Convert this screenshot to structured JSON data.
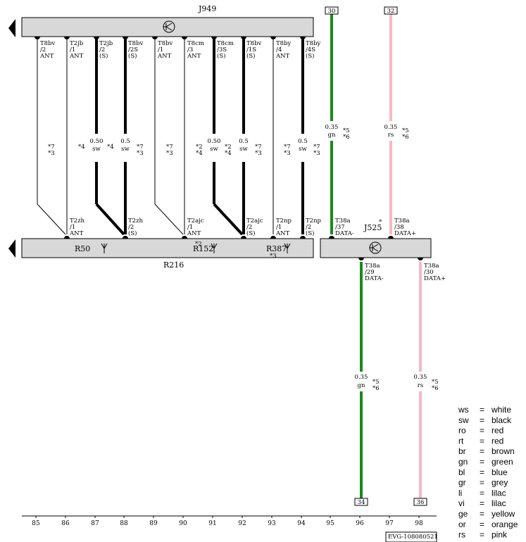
{
  "components": {
    "j949": "J949",
    "r216": "R216",
    "r50": "R50",
    "r152": "R152",
    "r387": "R387",
    "j525": "J525"
  },
  "top_wires": [
    {
      "conn": "T8bv",
      "pin": "/2",
      "sig": "ANT"
    },
    {
      "conn": "T2jb",
      "pin": "/1",
      "sig": "ANT"
    },
    {
      "conn": "T2jb",
      "pin": "/2",
      "sig": "(S)"
    },
    {
      "conn": "T8bv",
      "pin": "/2S",
      "sig": "(S)"
    },
    {
      "conn": "T8bv",
      "pin": "/1",
      "sig": "ANT"
    },
    {
      "conn": "T8cm",
      "pin": "/3",
      "sig": "ANT"
    },
    {
      "conn": "T8cm",
      "pin": "/3S",
      "sig": "(S)"
    },
    {
      "conn": "T8bv",
      "pin": "/1S",
      "sig": "(S)"
    },
    {
      "conn": "T8by",
      "pin": "/4",
      "sig": "ANT"
    },
    {
      "conn": "T8by",
      "pin": "/4S",
      "sig": "(S)"
    }
  ],
  "bottom_wires": [
    {
      "conn": "T2zh",
      "pin": "/1",
      "sig": "ANT"
    },
    {
      "conn": "T2zh",
      "pin": "/2",
      "sig": "(S)"
    },
    {
      "conn": "T2ajc",
      "pin": "/1",
      "sig": "ANT"
    },
    {
      "conn": "T2ajc",
      "pin": "/2",
      "sig": "(S)"
    },
    {
      "conn": "T2np",
      "pin": "/1",
      "sig": "ANT"
    },
    {
      "conn": "T2np",
      "pin": "/2",
      "sig": "(S)"
    },
    {
      "conn": "T38a",
      "pin": "/37",
      "sig": "DATA-"
    },
    {
      "conn": "T38a",
      "pin": "/38",
      "sig": "DATA+"
    }
  ],
  "lower_wires": [
    {
      "conn": "T38a",
      "pin": "/29",
      "sig": "DATA-"
    },
    {
      "conn": "T38a",
      "pin": "/30",
      "sig": "DATA+"
    }
  ],
  "wire_specs": {
    "w87_size": "0.50",
    "w87_color": "sw",
    "w88_size": "0.5",
    "w88_color": "sw",
    "w91_size": "0.50",
    "w91_color": "sw",
    "w92_size": "0.5",
    "w92_color": "sw",
    "w94_size": "0.5",
    "w94_color": "sw",
    "w95_size": "0.35",
    "w95_color": "gn",
    "w97_size": "0.35",
    "w97_color": "rs",
    "w96_size": "0.35",
    "w96_color": "gn",
    "w98_size": "0.35",
    "w98_color": "rs"
  },
  "wire_colors": {
    "black": "#000000",
    "green": "#1a8a1a",
    "pink": "#f4b8c4",
    "box_fill": "#d8d8d8"
  },
  "refs": {
    "r85a": "*7",
    "r85b": "*3",
    "r86": "*4",
    "r87": "*4",
    "r88a": "*7",
    "r88b": "*3",
    "r89a": "*7",
    "r89b": "*3",
    "r90a": "*2",
    "r90b": "*4",
    "r91a": "*2",
    "r91b": "*4",
    "r92a": "*7",
    "r92b": "*3",
    "r93a": "*7",
    "r93b": "*3",
    "r94a": "*7",
    "r94b": "*3",
    "r95a": "*5",
    "r95b": "*6",
    "r97a": "*5",
    "r97b": "*6",
    "r96a": "*5",
    "r96b": "*6",
    "r98a": "*5",
    "r98b": "*6",
    "r152_top": "*2",
    "r387_bot": "*3",
    "j525_star": "*"
  },
  "boxes": {
    "b30": "30",
    "b32": "32",
    "b34": "34",
    "b36": "36"
  },
  "columns": [
    "85",
    "86",
    "87",
    "88",
    "89",
    "90",
    "91",
    "92",
    "93",
    "94",
    "95",
    "96",
    "97",
    "98"
  ],
  "legend": [
    {
      "code": "ws",
      "eq": "=",
      "name": "white"
    },
    {
      "code": "sw",
      "eq": "=",
      "name": "black"
    },
    {
      "code": "ro",
      "eq": "=",
      "name": "red"
    },
    {
      "code": "rt",
      "eq": "=",
      "name": "red"
    },
    {
      "code": "br",
      "eq": "=",
      "name": "brown"
    },
    {
      "code": "gn",
      "eq": "=",
      "name": "green"
    },
    {
      "code": "bl",
      "eq": "=",
      "name": "blue"
    },
    {
      "code": "gr",
      "eq": "=",
      "name": "grey"
    },
    {
      "code": "li",
      "eq": "=",
      "name": "lilac"
    },
    {
      "code": "vi",
      "eq": "=",
      "name": "lilac"
    },
    {
      "code": "ge",
      "eq": "=",
      "name": "yellow"
    },
    {
      "code": "or",
      "eq": "=",
      "name": "orange"
    },
    {
      "code": "rs",
      "eq": "=",
      "name": "pink"
    }
  ],
  "doc_id": "EVG-108080521"
}
